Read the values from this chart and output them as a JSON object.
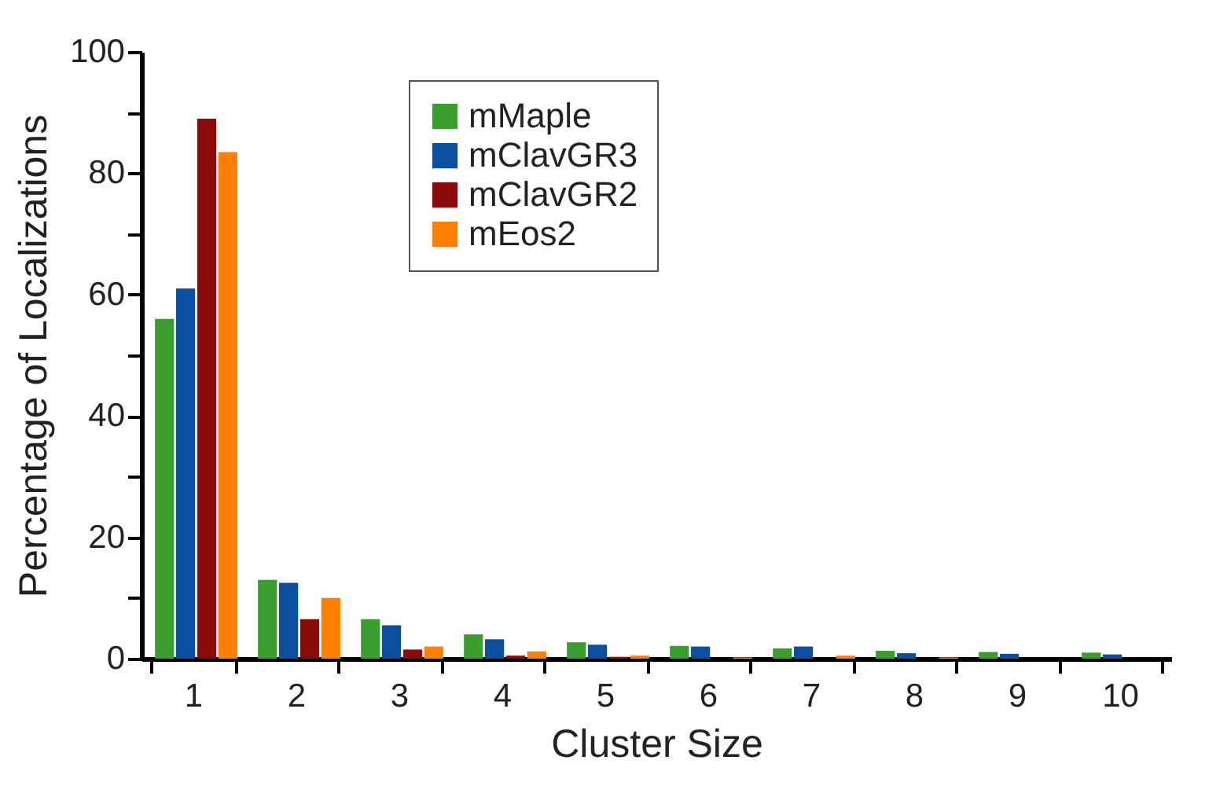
{
  "chart_data": {
    "type": "bar",
    "xlabel": "Cluster Size",
    "ylabel": "Percentage of Localizations",
    "categories": [
      "1",
      "2",
      "3",
      "4",
      "5",
      "6",
      "7",
      "8",
      "9",
      "10"
    ],
    "series": [
      {
        "name": "mMaple",
        "color": "#3a9e2f",
        "values": [
          56,
          13,
          6.5,
          4,
          2.7,
          2.1,
          1.7,
          1.3,
          1.1,
          1.0
        ]
      },
      {
        "name": "mClavGR3",
        "color": "#0b50a0",
        "values": [
          61,
          12.5,
          5.5,
          3.2,
          2.3,
          2.0,
          2.0,
          0.9,
          0.8,
          0.7
        ]
      },
      {
        "name": "mClavGR2",
        "color": "#8b0a0a",
        "values": [
          89,
          6.5,
          1.5,
          0.5,
          0.3,
          0,
          0,
          0,
          0,
          0
        ]
      },
      {
        "name": "mEos2",
        "color": "#ff8000",
        "values": [
          83.5,
          10,
          2,
          1.2,
          0.5,
          0.2,
          0.5,
          0.2,
          0,
          0
        ]
      }
    ],
    "ylim": [
      0,
      100
    ],
    "yticks": [
      0,
      {
        "value": 10,
        "label": null
      },
      20,
      {
        "value": 30,
        "label": null
      },
      40,
      {
        "value": 50,
        "label": null
      },
      60,
      {
        "value": 70,
        "label": null
      },
      80,
      {
        "value": 90,
        "label": null
      },
      100
    ],
    "grid": false,
    "legend": "top"
  }
}
